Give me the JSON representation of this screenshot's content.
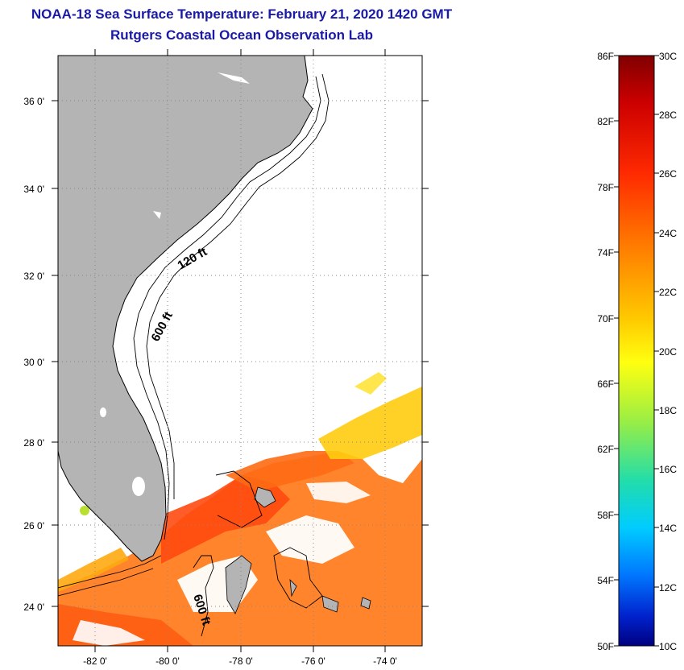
{
  "title": "NOAA-18 Sea Surface Temperature:  February 21, 2020 1420 GMT",
  "subtitle": "Rutgers Coastal Ocean Observation Lab",
  "map": {
    "lat_labels": [
      "36 0'",
      "34 0'",
      "32 0'",
      "30 0'",
      "28 0'",
      "26 0'",
      "24 0'"
    ],
    "lon_labels": [
      "-82 0'",
      "-80 0'",
      "-78 0'",
      "-76 0'",
      "-74 0'"
    ],
    "lat_range": [
      23,
      37.1
    ],
    "lon_range": [
      -83,
      -73
    ],
    "isobath_labels": [
      "120 ft",
      "600 ft",
      "600 ft"
    ],
    "land_color": "#b4b4b4",
    "water_color": "#ffffff"
  },
  "colorbar": {
    "fahrenheit_labels": [
      "86F",
      "82F",
      "78F",
      "74F",
      "70F",
      "66F",
      "62F",
      "58F",
      "54F",
      "50F"
    ],
    "celsius_labels": [
      "30C",
      "28C",
      "26C",
      "24C",
      "22C",
      "20C",
      "18C",
      "16C",
      "14C",
      "12C",
      "10C"
    ],
    "range_c": [
      10,
      30
    ],
    "range_f": [
      50,
      86
    ],
    "colors_top_to_bottom": [
      "#800000",
      "#e60000",
      "#ff4400",
      "#ff8800",
      "#ffcc00",
      "#ffff00",
      "#c8f03c",
      "#55dd66",
      "#00eedd",
      "#0099ff",
      "#0033cc",
      "#000080"
    ]
  }
}
